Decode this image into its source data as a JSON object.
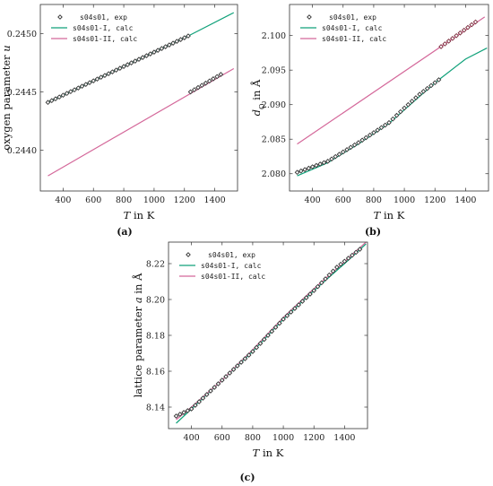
{
  "colors": {
    "exp": "#333333",
    "calcI": "#10a17a",
    "calcII": "#d4689a",
    "frame": "#333333"
  },
  "legend_names": {
    "exp": "s04s01, exp",
    "calcI": "s04s01-I, calc",
    "calcII": "s04s01-II, calc"
  },
  "chart_data": [
    {
      "id": "a",
      "type": "scatter",
      "caption": "(a)",
      "xlabel_var": "T",
      "xlabel_rest": " in K",
      "ylabel_parts": [
        {
          "t": "oxygen parameter "
        },
        {
          "t": "u",
          "i": true
        }
      ],
      "xlim": [
        250,
        1550
      ],
      "ylim": [
        0.24365,
        0.24525
      ],
      "xticks": [
        400,
        600,
        800,
        1000,
        1200,
        1400
      ],
      "yticks": [
        {
          "v": 0.244,
          "l": "0.2440"
        },
        {
          "v": 0.2445,
          "l": "0.2445"
        },
        {
          "v": 0.245,
          "l": "0.2450"
        }
      ],
      "legend": "top-left",
      "series": [
        {
          "name": "s04s01, exp",
          "kind": "scatter",
          "color": "#333333",
          "segments": [
            {
              "x_start": 300,
              "x_end": 1225,
              "step": 25,
              "y_start": 0.24441,
              "y_end": 0.24498
            },
            {
              "x_start": 1240,
              "x_end": 1440,
              "step": 25,
              "y_start": 0.2445,
              "y_end": 0.24465
            }
          ]
        },
        {
          "name": "s04s01-I, calc",
          "kind": "line",
          "color": "#10a17a",
          "points": [
            [
              300,
              0.24441
            ],
            [
              1225,
              0.24498
            ],
            [
              1525,
              0.24518
            ]
          ]
        },
        {
          "name": "s04s01-II, calc",
          "kind": "line",
          "color": "#d4689a",
          "points": [
            [
              300,
              0.24378
            ],
            [
              1525,
              0.2447
            ]
          ]
        }
      ]
    },
    {
      "id": "b",
      "type": "scatter",
      "caption": "(b)",
      "xlabel_var": "T",
      "xlabel_rest": " in K",
      "ylabel_parts": [
        {
          "t": "d",
          "i": true
        },
        {
          "t": "O",
          "sub": true
        },
        {
          "t": " in Å"
        }
      ],
      "xlim": [
        250,
        1550
      ],
      "ylim": [
        2.0775,
        2.1045
      ],
      "xticks": [
        400,
        600,
        800,
        1000,
        1200,
        1400
      ],
      "yticks": [
        {
          "v": 2.08,
          "l": "2.080"
        },
        {
          "v": 2.085,
          "l": "2.085"
        },
        {
          "v": 2.09,
          "l": "2.090"
        },
        {
          "v": 2.095,
          "l": "2.095"
        },
        {
          "v": 2.1,
          "l": "2.100"
        }
      ],
      "legend": "top-left",
      "series": [
        {
          "name": "s04s01, exp",
          "kind": "scatter",
          "color": "#333333",
          "segments": [
            {
              "x_start": 300,
              "x_end": 1225,
              "step": 25,
              "curve": [
                [
                  300,
                  2.0802
                ],
                [
                  500,
                  2.0818
                ],
                [
                  700,
                  2.0845
                ],
                [
                  900,
                  2.0874
                ],
                [
                  1000,
                  2.0895
                ],
                [
                  1100,
                  2.0915
                ],
                [
                  1225,
                  2.0936
                ]
              ]
            },
            {
              "x_start": 1240,
              "x_end": 1480,
              "step": 25,
              "curve": [
                [
                  1240,
                  2.0984
                ],
                [
                  1480,
                  2.1022
                ]
              ],
              "marker_color": "#7a2a3a"
            }
          ]
        },
        {
          "name": "s04s01-I, calc",
          "kind": "line",
          "color": "#10a17a",
          "points": [
            [
              300,
              2.0797
            ],
            [
              500,
              2.0816
            ],
            [
              700,
              2.0843
            ],
            [
              900,
              2.0873
            ],
            [
              1100,
              2.0912
            ],
            [
              1225,
              2.0936
            ],
            [
              1400,
              2.0966
            ],
            [
              1540,
              2.0982
            ]
          ]
        },
        {
          "name": "s04s01-II, calc",
          "kind": "line",
          "color": "#d4689a",
          "points": [
            [
              300,
              2.0843
            ],
            [
              1525,
              2.1027
            ]
          ]
        }
      ]
    },
    {
      "id": "c",
      "type": "scatter",
      "caption": "(c)",
      "xlabel_var": "T",
      "xlabel_rest": " in K",
      "ylabel_parts": [
        {
          "t": "lattice parameter "
        },
        {
          "t": "a",
          "i": true
        },
        {
          "t": " in Å"
        }
      ],
      "xlim": [
        250,
        1550
      ],
      "ylim": [
        8.128,
        8.232
      ],
      "xticks": [
        400,
        600,
        800,
        1000,
        1200,
        1400
      ],
      "yticks": [
        {
          "v": 8.14,
          "l": "8.14"
        },
        {
          "v": 8.16,
          "l": "8.16"
        },
        {
          "v": 8.18,
          "l": "8.18"
        },
        {
          "v": 8.2,
          "l": "8.20"
        },
        {
          "v": 8.22,
          "l": "8.22"
        }
      ],
      "legend": "top-left",
      "series": [
        {
          "name": "s04s01, exp",
          "kind": "scatter",
          "color": "#333333",
          "segments": [
            {
              "x_start": 300,
              "x_end": 1500,
              "step": 25,
              "curve": [
                [
                  300,
                  8.135
                ],
                [
                  400,
                  8.139
                ],
                [
                  600,
                  8.155
                ],
                [
                  800,
                  8.171
                ],
                [
                  1000,
                  8.189
                ],
                [
                  1200,
                  8.205
                ],
                [
                  1350,
                  8.218
                ],
                [
                  1500,
                  8.228
                ]
              ]
            }
          ]
        },
        {
          "name": "s04s01-I, calc",
          "kind": "line",
          "color": "#10a17a",
          "points": [
            [
              300,
              8.131
            ],
            [
              400,
              8.139
            ],
            [
              600,
              8.155
            ],
            [
              800,
              8.171
            ],
            [
              1000,
              8.189
            ],
            [
              1200,
              8.205
            ],
            [
              1400,
              8.22
            ],
            [
              1540,
              8.231
            ]
          ]
        },
        {
          "name": "s04s01-II, calc",
          "kind": "line",
          "color": "#d4689a",
          "points": [
            [
              300,
              8.133
            ],
            [
              400,
              8.14
            ],
            [
              600,
              8.155
            ],
            [
              800,
              8.172
            ],
            [
              1000,
              8.19
            ],
            [
              1200,
              8.206
            ],
            [
              1400,
              8.221
            ],
            [
              1540,
              8.232
            ]
          ]
        }
      ]
    }
  ]
}
